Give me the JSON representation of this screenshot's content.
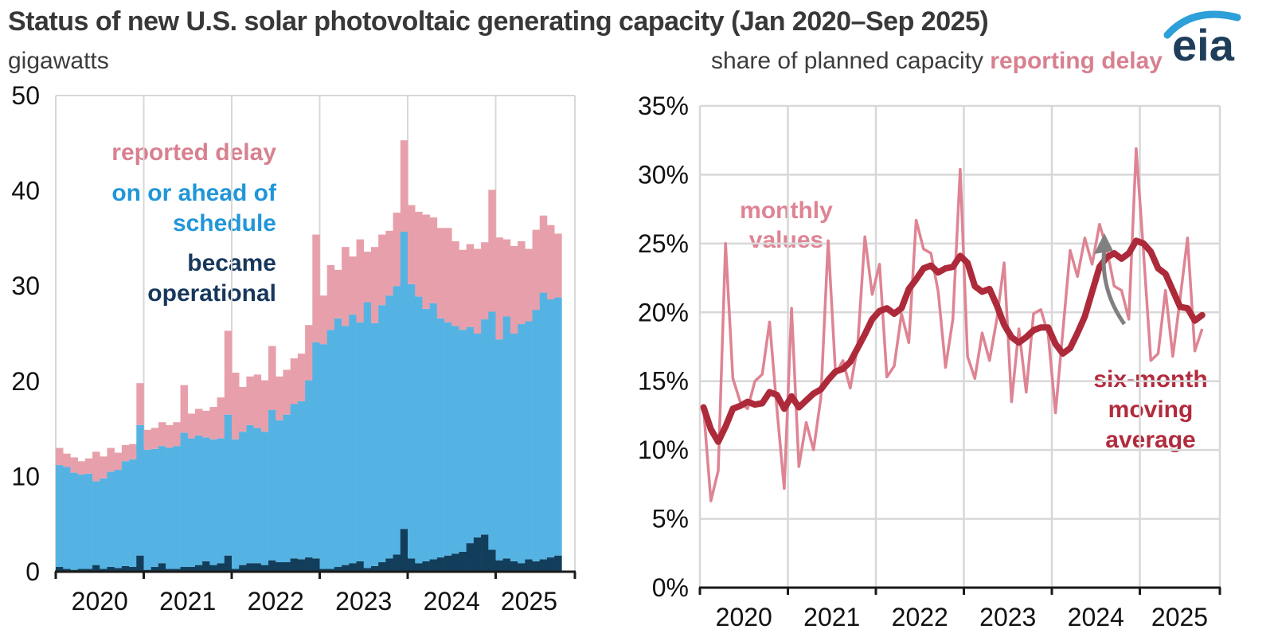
{
  "header": {
    "title": "Status of new U.S. solar photovoltaic generating capacity (Jan 2020–Sep 2025)",
    "left_subtitle": "gigawatts",
    "right_subtitle_prefix": "share of planned capacity ",
    "right_subtitle_highlight": "reporting delay",
    "logo_text": "eia"
  },
  "legend": {
    "reported_delay": "reported delay",
    "on_or_ahead": "on or ahead of\nschedule",
    "became_operational": "became\noperational"
  },
  "annotations": {
    "monthly_values": "monthly\nvalues",
    "six_month_avg": "six-month\nmoving\naverage"
  },
  "colors": {
    "bar_delay": "#e7a0ab",
    "bar_ahead": "#55b3e3",
    "bar_operational": "#123e5b",
    "line_monthly": "#de8493",
    "line_moving_avg": "#ad2a3a",
    "grid": "#d8d8d8",
    "axis": "#1a1a1a",
    "arrow": "#808080",
    "logo_blue": "#2d9fd9",
    "logo_navy": "#1f3e5a"
  },
  "left_axis": {
    "y_tick_labels": [
      "0",
      "10",
      "20",
      "30",
      "40",
      "50"
    ],
    "year_labels": [
      "2020",
      "2021",
      "2022",
      "2023",
      "2024",
      "2025"
    ]
  },
  "right_axis": {
    "y_tick_labels": [
      "0%",
      "5%",
      "10%",
      "15%",
      "20%",
      "25%",
      "30%",
      "35%"
    ],
    "year_labels": [
      "2020",
      "2021",
      "2022",
      "2023",
      "2024",
      "2025"
    ]
  },
  "chart_data": [
    {
      "type": "bar",
      "stacked": true,
      "title": "Status of new U.S. solar photovoltaic generating capacity",
      "ylabel": "gigawatts",
      "ylim": [
        0,
        50
      ],
      "grid": "vertical-years-only",
      "categories": [
        "2020-01",
        "2020-02",
        "2020-03",
        "2020-04",
        "2020-05",
        "2020-06",
        "2020-07",
        "2020-08",
        "2020-09",
        "2020-10",
        "2020-11",
        "2020-12",
        "2021-01",
        "2021-02",
        "2021-03",
        "2021-04",
        "2021-05",
        "2021-06",
        "2021-07",
        "2021-08",
        "2021-09",
        "2021-10",
        "2021-11",
        "2021-12",
        "2022-01",
        "2022-02",
        "2022-03",
        "2022-04",
        "2022-05",
        "2022-06",
        "2022-07",
        "2022-08",
        "2022-09",
        "2022-10",
        "2022-11",
        "2022-12",
        "2023-01",
        "2023-02",
        "2023-03",
        "2023-04",
        "2023-05",
        "2023-06",
        "2023-07",
        "2023-08",
        "2023-09",
        "2023-10",
        "2023-11",
        "2023-12",
        "2024-01",
        "2024-02",
        "2024-03",
        "2024-04",
        "2024-05",
        "2024-06",
        "2024-07",
        "2024-08",
        "2024-09",
        "2024-10",
        "2024-11",
        "2024-12",
        "2025-01",
        "2025-02",
        "2025-03",
        "2025-04",
        "2025-05",
        "2025-06",
        "2025-07",
        "2025-08",
        "2025-09"
      ],
      "series": [
        {
          "name": "became operational",
          "values": [
            0.5,
            0.3,
            0.2,
            0.3,
            0.3,
            0.7,
            0.3,
            0.5,
            0.4,
            0.6,
            0.5,
            1.7,
            0.2,
            0.5,
            0.9,
            0.3,
            0.3,
            0.5,
            0.5,
            0.7,
            1.1,
            0.7,
            0.9,
            1.7,
            0.3,
            0.7,
            0.9,
            0.9,
            0.7,
            1.2,
            1.0,
            1.0,
            1.4,
            1.3,
            1.5,
            1.4,
            0.3,
            0.3,
            0.5,
            0.7,
            0.9,
            1.1,
            0.4,
            0.6,
            1.0,
            1.4,
            1.8,
            4.5,
            1.4,
            0.9,
            1.1,
            1.3,
            1.5,
            1.7,
            1.9,
            2.1,
            3.0,
            3.6,
            3.9,
            2.3,
            1.2,
            1.4,
            1.1,
            0.9,
            1.3,
            1.1,
            1.3,
            1.5,
            1.7
          ]
        },
        {
          "name": "on or ahead of schedule",
          "values": [
            10.7,
            10.7,
            10.2,
            9.9,
            10.0,
            8.8,
            9.5,
            10.0,
            10.3,
            11.0,
            11.3,
            13.7,
            12.6,
            12.4,
            12.3,
            12.7,
            12.9,
            14.1,
            13.5,
            13.6,
            13.0,
            13.2,
            13.1,
            14.8,
            13.6,
            14.0,
            14.5,
            14.2,
            14.0,
            15.8,
            14.9,
            15.5,
            16.2,
            16.6,
            18.6,
            22.7,
            23.6,
            25.1,
            26.1,
            25.1,
            26.1,
            25.1,
            27.9,
            25.5,
            27.0,
            27.6,
            28.2,
            31.2,
            28.8,
            28.0,
            26.5,
            26.9,
            25.1,
            24.5,
            23.9,
            23.3,
            22.7,
            21.4,
            22.6,
            25.0,
            23.2,
            25.4,
            23.9,
            25.1,
            25.0,
            26.4,
            28.0,
            27.1,
            27.1
          ]
        },
        {
          "name": "reported delay",
          "values": [
            1.8,
            1.4,
            1.6,
            1.4,
            1.6,
            3.1,
            2.3,
            2.5,
            1.8,
            1.7,
            1.6,
            4.4,
            2.1,
            2.2,
            2.5,
            2.4,
            2.5,
            5.0,
            2.6,
            2.8,
            2.8,
            3.4,
            4.3,
            8.8,
            7.0,
            4.7,
            5.1,
            5.6,
            5.4,
            6.7,
            4.6,
            4.7,
            4.8,
            5.0,
            5.8,
            11.3,
            5.1,
            6.8,
            5.1,
            8.3,
            6.1,
            8.7,
            5.3,
            8.0,
            7.4,
            6.8,
            7.7,
            9.6,
            8.3,
            8.9,
            9.9,
            9.0,
            9.5,
            9.9,
            8.9,
            8.4,
            8.7,
            8.9,
            8.1,
            12.8,
            10.7,
            8.1,
            9.2,
            8.7,
            7.6,
            8.4,
            8.1,
            7.8,
            6.7
          ]
        }
      ]
    },
    {
      "type": "line",
      "title": "share of planned capacity reporting delay",
      "ylabel": "percent",
      "ylim": [
        0,
        35
      ],
      "grid": "both",
      "x_months": [
        "2020-01",
        "2020-02",
        "2020-03",
        "2020-04",
        "2020-05",
        "2020-06",
        "2020-07",
        "2020-08",
        "2020-09",
        "2020-10",
        "2020-11",
        "2020-12",
        "2021-01",
        "2021-02",
        "2021-03",
        "2021-04",
        "2021-05",
        "2021-06",
        "2021-07",
        "2021-08",
        "2021-09",
        "2021-10",
        "2021-11",
        "2021-12",
        "2022-01",
        "2022-02",
        "2022-03",
        "2022-04",
        "2022-05",
        "2022-06",
        "2022-07",
        "2022-08",
        "2022-09",
        "2022-10",
        "2022-11",
        "2022-12",
        "2023-01",
        "2023-02",
        "2023-03",
        "2023-04",
        "2023-05",
        "2023-06",
        "2023-07",
        "2023-08",
        "2023-09",
        "2023-10",
        "2023-11",
        "2023-12",
        "2024-01",
        "2024-02",
        "2024-03",
        "2024-04",
        "2024-05",
        "2024-06",
        "2024-07",
        "2024-08",
        "2024-09",
        "2024-10",
        "2024-11",
        "2024-12",
        "2025-01",
        "2025-02",
        "2025-03",
        "2025-04",
        "2025-05",
        "2025-06",
        "2025-07",
        "2025-08",
        "2025-09"
      ],
      "series": [
        {
          "name": "monthly values",
          "values": [
            13.0,
            6.3,
            8.5,
            25.0,
            15.2,
            13.5,
            13.0,
            15.0,
            15.5,
            19.3,
            13.0,
            7.2,
            20.3,
            8.8,
            12.0,
            10.0,
            13.8,
            25.2,
            15.5,
            16.5,
            14.5,
            17.5,
            25.5,
            21.3,
            23.5,
            15.3,
            16.1,
            19.9,
            17.8,
            26.7,
            24.6,
            24.3,
            21.5,
            16.0,
            19.5,
            30.4,
            16.8,
            15.2,
            18.5,
            16.5,
            19.5,
            23.6,
            13.5,
            18.8,
            14.2,
            19.9,
            20.2,
            18.4,
            12.7,
            18.6,
            24.5,
            22.6,
            25.4,
            23.5,
            26.4,
            24.6,
            21.9,
            21.6,
            19.5,
            31.9,
            24.4,
            16.5,
            17.0,
            21.6,
            16.8,
            21.0,
            25.4,
            17.2,
            18.8
          ]
        },
        {
          "name": "six-month moving average",
          "values": [
            13.1,
            11.5,
            10.6,
            11.7,
            13.0,
            13.2,
            13.5,
            13.3,
            13.4,
            14.2,
            14.0,
            13.0,
            13.9,
            13.1,
            13.6,
            14.1,
            14.4,
            15.1,
            15.7,
            15.9,
            16.4,
            17.4,
            18.4,
            19.5,
            20.1,
            20.3,
            19.9,
            20.3,
            21.7,
            22.4,
            23.2,
            23.4,
            22.9,
            23.2,
            23.3,
            24.1,
            23.6,
            21.9,
            21.5,
            21.7,
            20.5,
            19.1,
            18.2,
            17.8,
            18.2,
            18.7,
            18.9,
            18.9,
            17.7,
            17.0,
            17.4,
            18.5,
            19.7,
            21.5,
            23.3,
            24.0,
            24.3,
            23.9,
            24.3,
            25.2,
            25.0,
            24.4,
            23.2,
            22.8,
            21.6,
            20.4,
            20.3,
            19.4,
            19.8
          ]
        }
      ]
    }
  ]
}
